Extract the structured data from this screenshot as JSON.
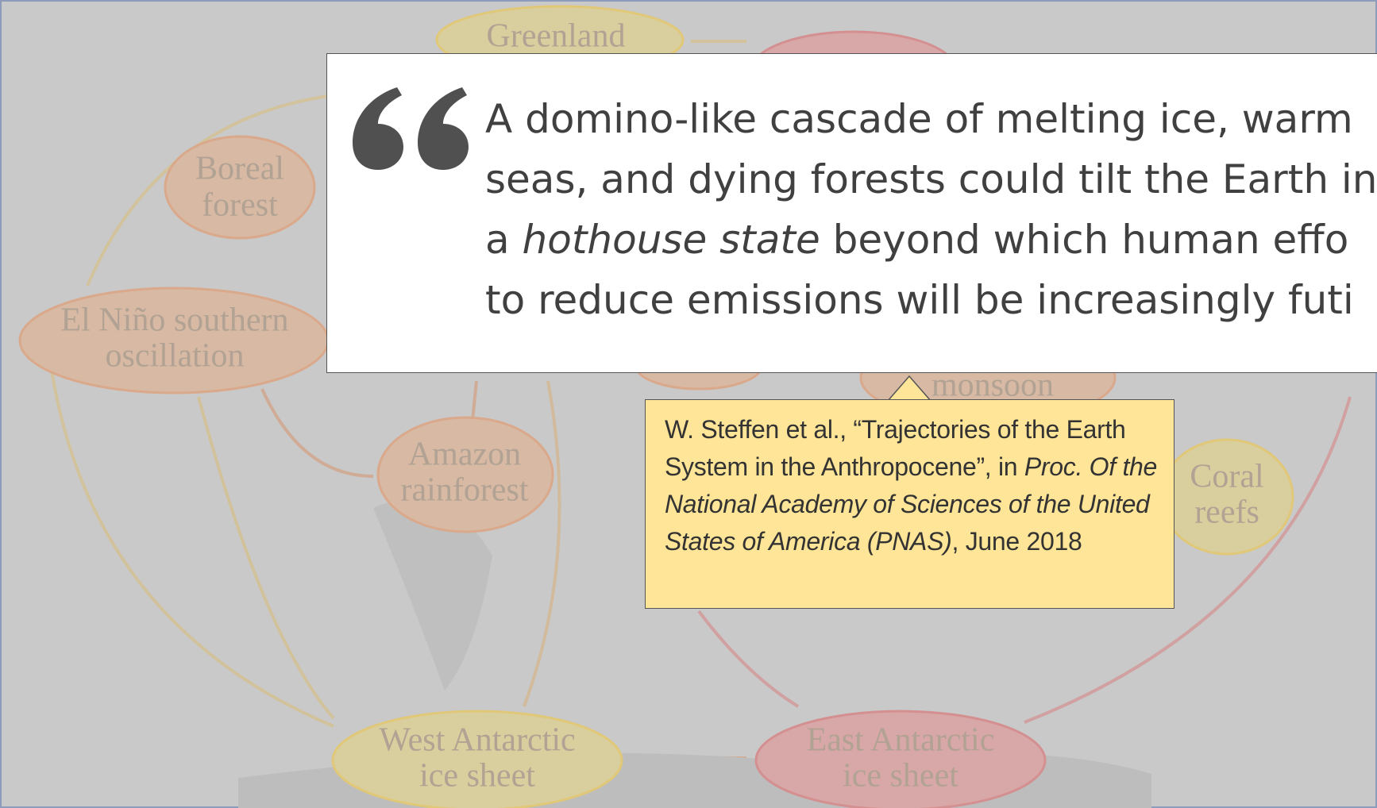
{
  "background": {
    "labels": {
      "greenland": "Greenland",
      "boreal": [
        "Boreal",
        "forest"
      ],
      "enso": [
        "El Niño southern",
        "oscillation"
      ],
      "amazon": [
        "Amazon",
        "rainforest"
      ],
      "monsoon": "monsoon",
      "coral": [
        "Coral",
        "reefs"
      ],
      "west_antarctic": [
        "West Antarctic",
        "ice sheet"
      ],
      "east_antarctic": [
        "East Antarctic",
        "ice sheet"
      ]
    }
  },
  "quote": {
    "line1": "A domino-like cascade of melting ice, warm",
    "line2": "seas, and dying forests could tilt the Earth in",
    "line3_before": "a ",
    "line3_italic": "hothouse state",
    "line3_after": " beyond which human effo",
    "line4": "to reduce emissions will be increasingly futi"
  },
  "citation": {
    "plain_start": "W. Steffen et al., “Trajectories of the Earth System in the Anthropocene”, in ",
    "italic": "Proc. Of the National Academy of Sciences of the United States of America (PNAS)",
    "plain_end": ", June 2018"
  }
}
